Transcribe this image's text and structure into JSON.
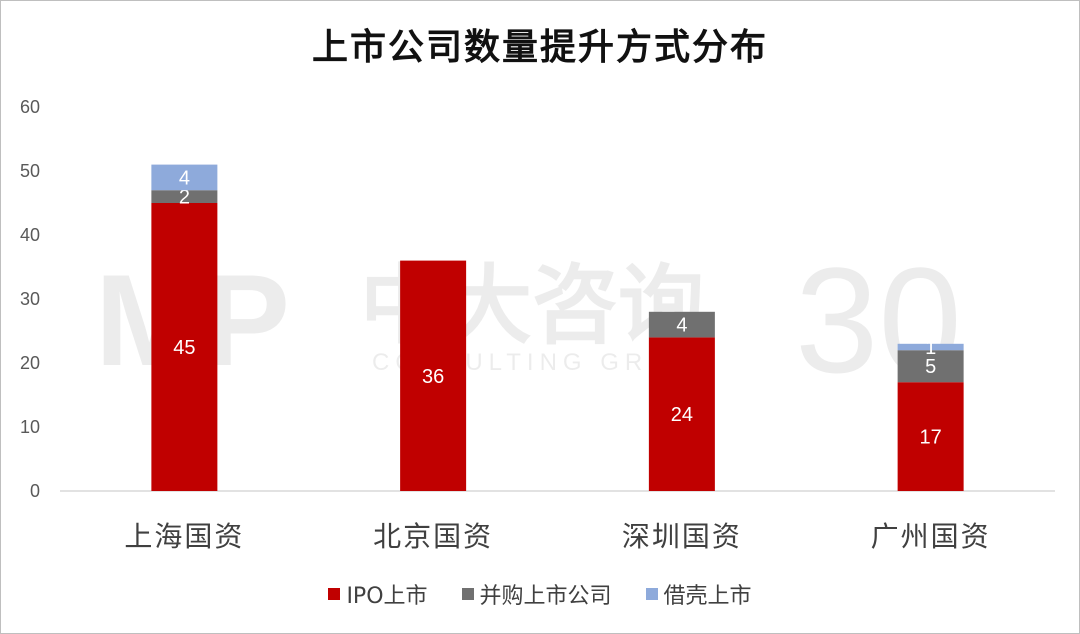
{
  "chart_data": {
    "type": "bar",
    "stacked": true,
    "title": "上市公司数量提升方式分布",
    "categories": [
      "上海国资",
      "北京国资",
      "深圳国资",
      "广州国资"
    ],
    "series": [
      {
        "name": "IPO上市",
        "color": "#c00000",
        "values": [
          45,
          36,
          24,
          17
        ],
        "labels": [
          "45",
          "36",
          "24",
          "17"
        ]
      },
      {
        "name": "并购上市公司",
        "color": "#707070",
        "values": [
          2,
          0,
          4,
          5
        ],
        "labels": [
          "2",
          "",
          "4",
          "5"
        ]
      },
      {
        "name": "借壳上市",
        "color": "#8eaadb",
        "values": [
          4,
          0,
          0,
          1
        ],
        "labels": [
          "4",
          "",
          "",
          "1"
        ]
      }
    ],
    "y_ticks": [
      "0",
      "10",
      "20",
      "30",
      "40",
      "50",
      "60"
    ],
    "ylim": [
      0,
      60
    ],
    "grid": false,
    "legend_position": "bottom"
  },
  "watermark": {
    "logo_text": "MP",
    "company_text": "中大咨询",
    "sub_text": "CONSULTING GROUP",
    "anniversary_text": "30"
  }
}
